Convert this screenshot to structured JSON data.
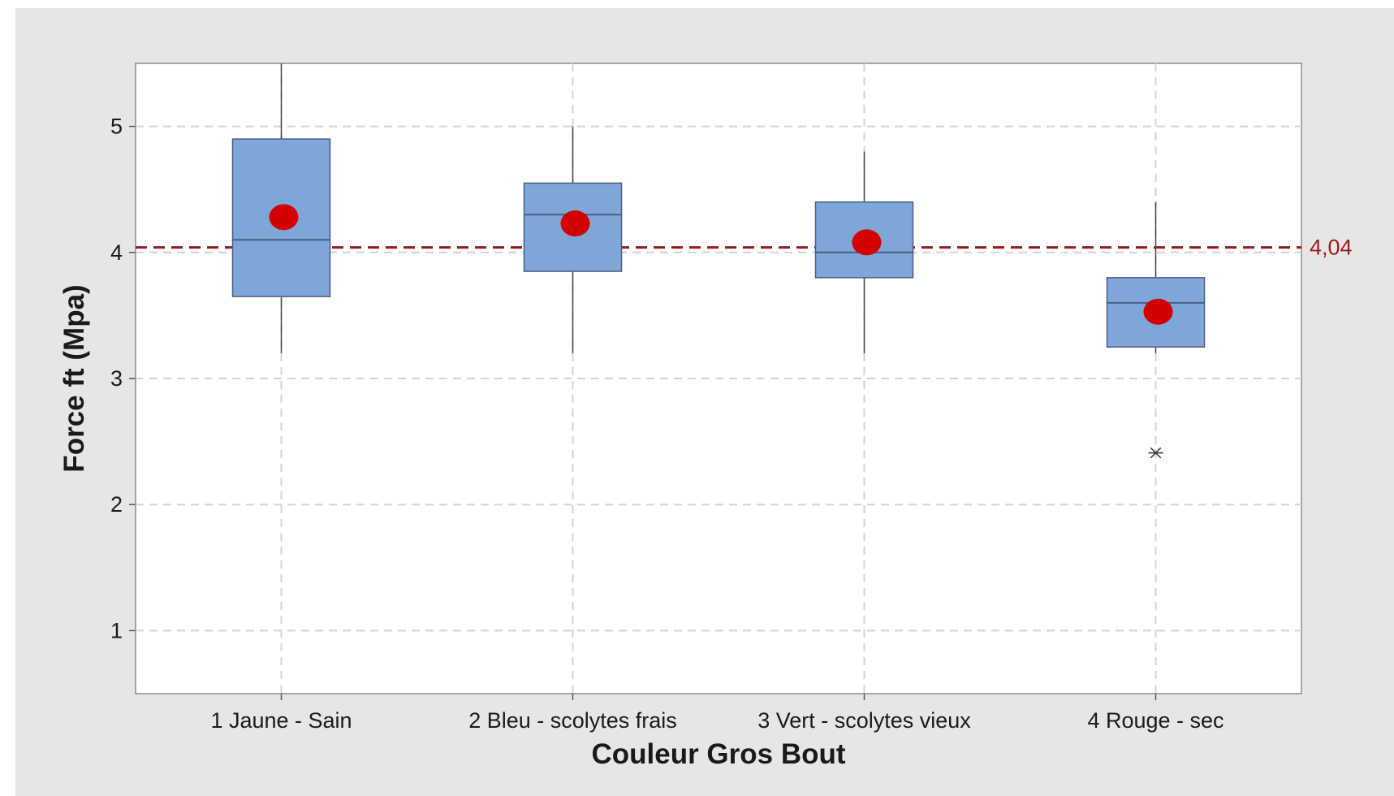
{
  "chart_data": {
    "type": "box",
    "xlabel": "Couleur Gros Bout",
    "ylabel": "Force ft (Mpa)",
    "ylim": [
      0.5,
      5.5
    ],
    "yticks": [
      1,
      2,
      3,
      4,
      5
    ],
    "grid": true,
    "categories": [
      "1 Jaune - Sain",
      "2 Bleu - scolytes frais",
      "3 Vert - scolytes vieux",
      "4 Rouge - sec"
    ],
    "boxes": [
      {
        "category": "1 Jaune - Sain",
        "whisker_low": 3.2,
        "q1": 3.65,
        "median": 4.1,
        "q3": 4.9,
        "whisker_high": 5.5,
        "mean": 4.28,
        "outliers": []
      },
      {
        "category": "2 Bleu - scolytes frais",
        "whisker_low": 3.2,
        "q1": 3.85,
        "median": 4.3,
        "q3": 4.55,
        "whisker_high": 5.0,
        "mean": 4.23,
        "outliers": []
      },
      {
        "category": "3 Vert - scolytes vieux",
        "whisker_low": 3.2,
        "q1": 3.8,
        "median": 4.0,
        "q3": 4.4,
        "whisker_high": 4.8,
        "mean": 4.08,
        "outliers": []
      },
      {
        "category": "4 Rouge - sec",
        "whisker_low": 3.2,
        "q1": 3.25,
        "median": 3.6,
        "q3": 3.8,
        "whisker_high": 4.4,
        "mean": 3.53,
        "outliers": [
          2.41
        ]
      }
    ],
    "reference_line": {
      "value": 4.04,
      "label": "4,04",
      "color": "#9b1b1b"
    },
    "colors": {
      "box_fill": "#7ea6d9",
      "box_stroke": "#4a5f80",
      "mean_marker": "#d40000",
      "background": "#e6e6e6",
      "plot_area": "#ffffff",
      "grid": "#d4d4d4"
    }
  }
}
